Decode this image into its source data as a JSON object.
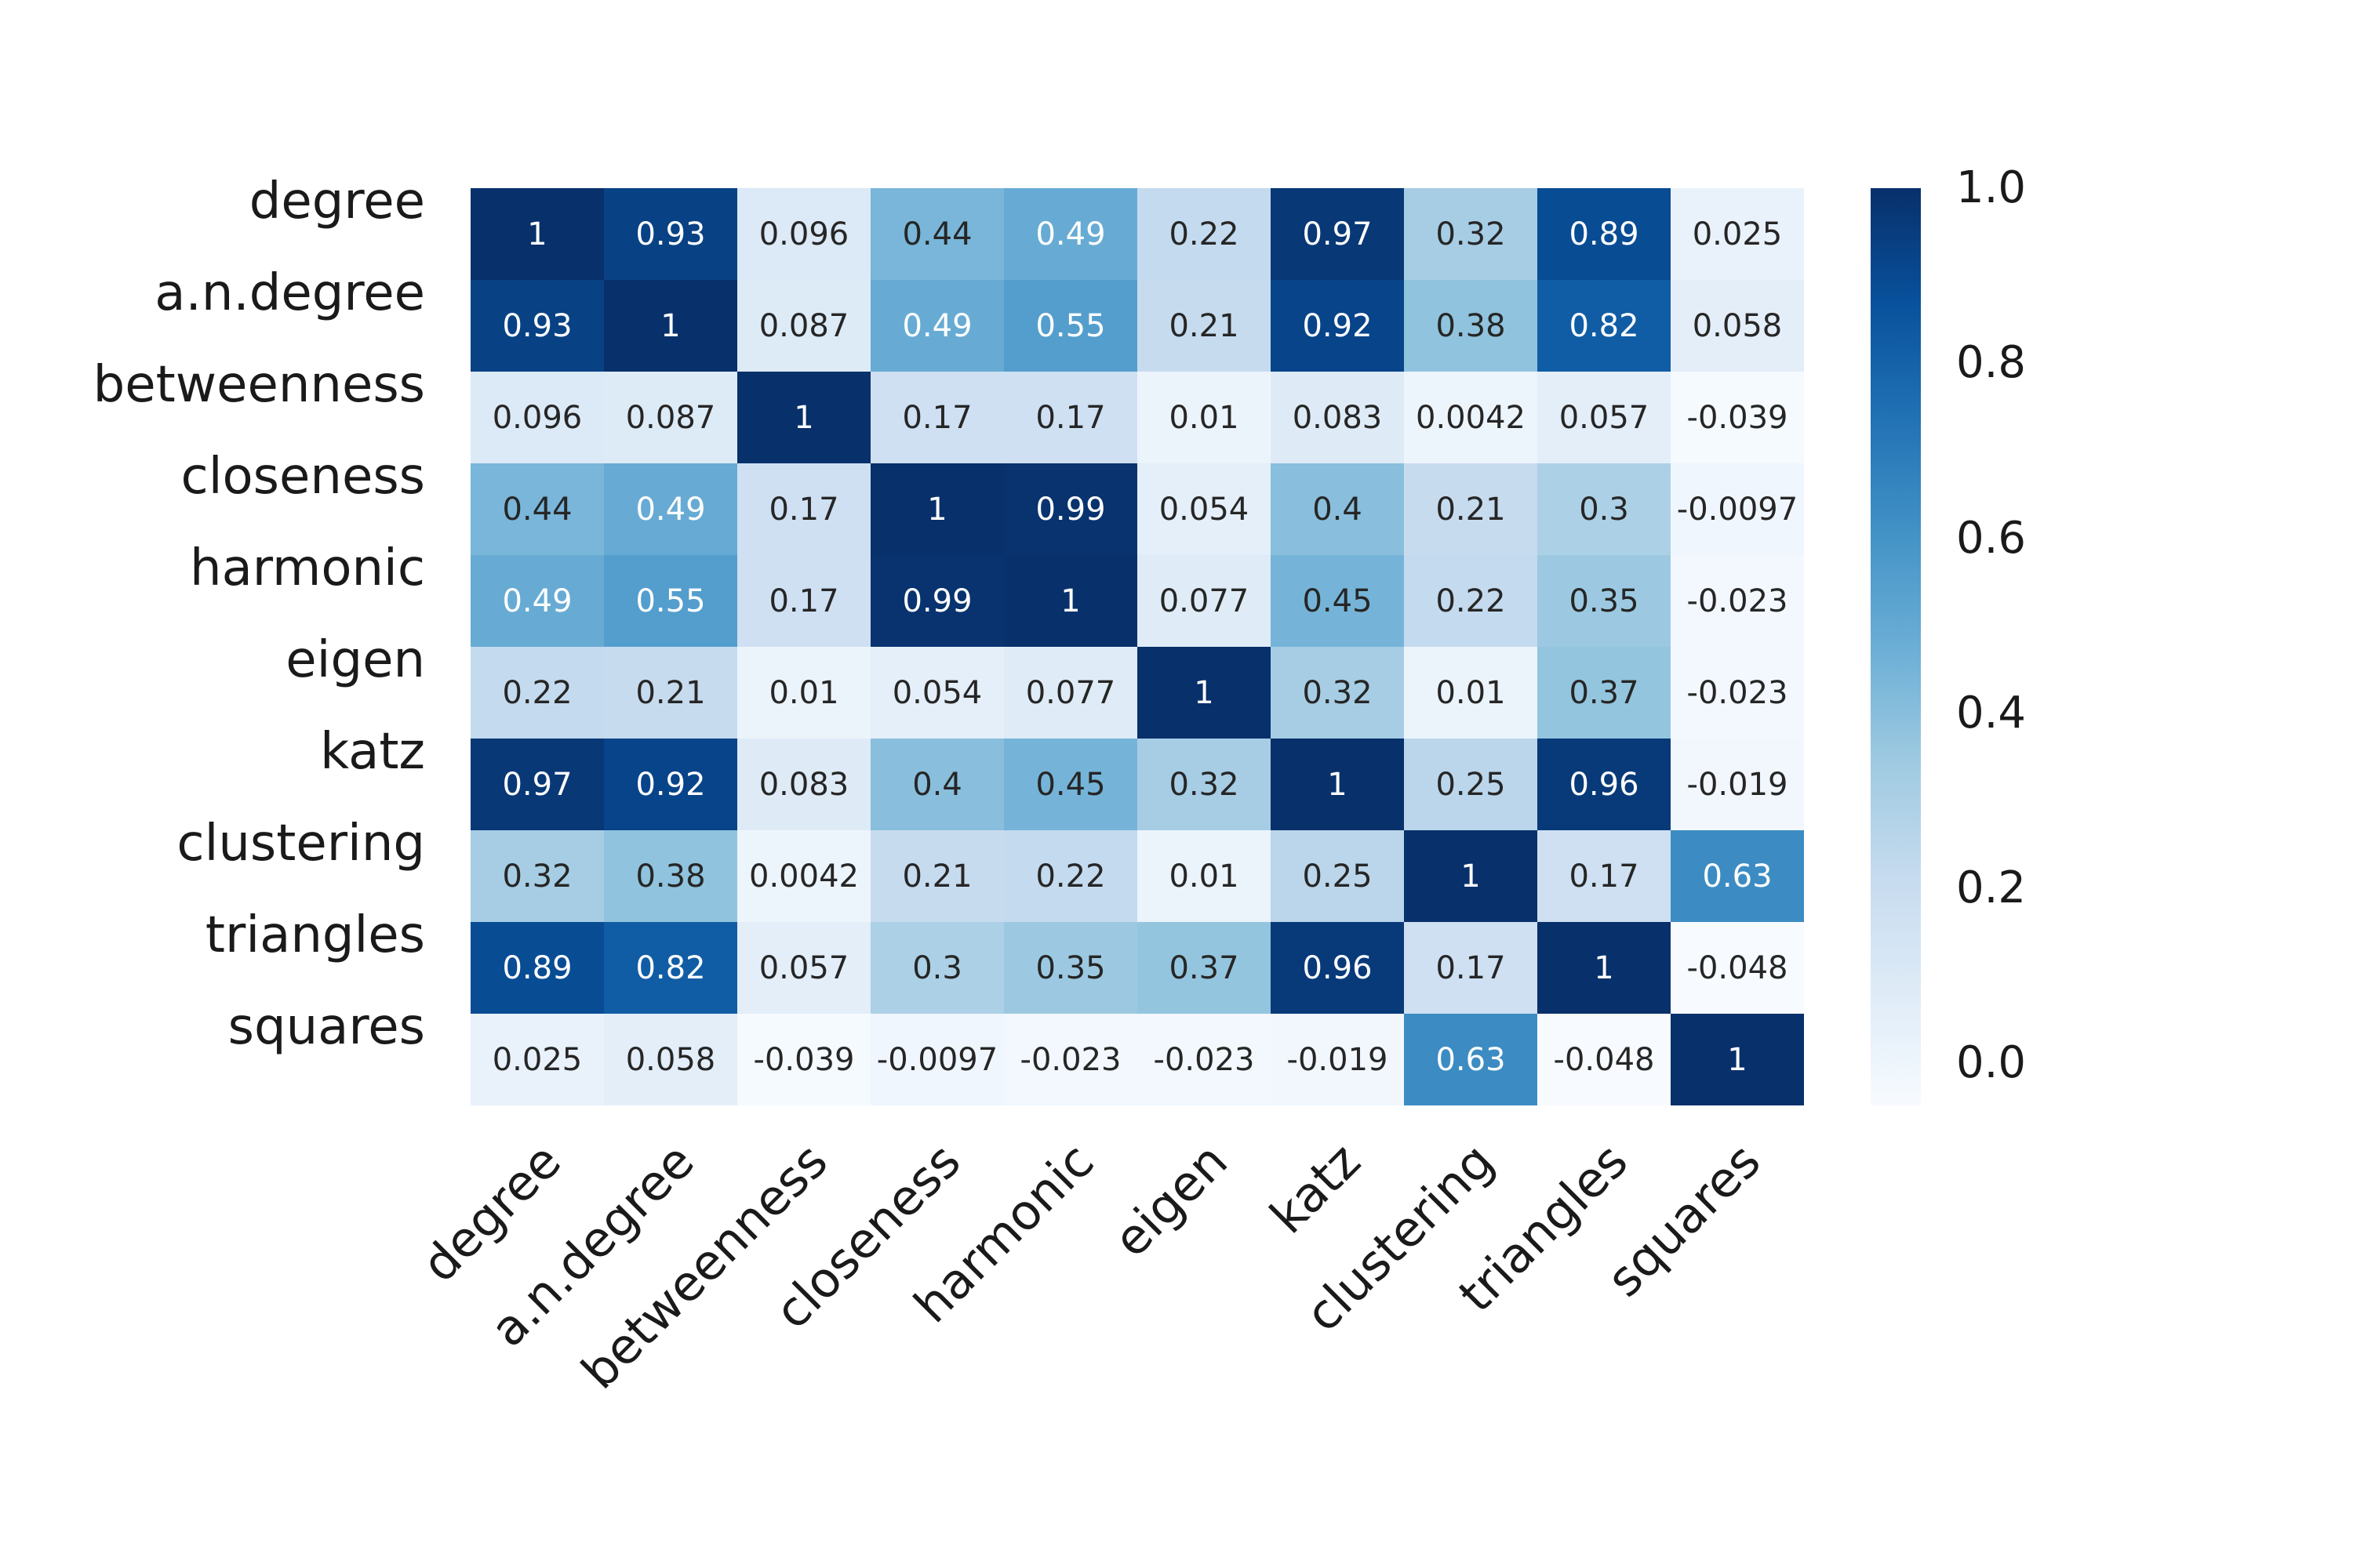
{
  "chart_data": {
    "type": "heatmap",
    "title": "",
    "categories": [
      "degree",
      "a.n.degree",
      "betweenness",
      "closeness",
      "harmonic",
      "eigen",
      "katz",
      "clustering",
      "triangles",
      "squares"
    ],
    "matrix": [
      [
        1,
        0.93,
        0.096,
        0.44,
        0.49,
        0.22,
        0.97,
        0.32,
        0.89,
        0.025
      ],
      [
        0.93,
        1,
        0.087,
        0.49,
        0.55,
        0.21,
        0.92,
        0.38,
        0.82,
        0.058
      ],
      [
        0.096,
        0.087,
        1,
        0.17,
        0.17,
        0.01,
        0.083,
        0.0042,
        0.057,
        -0.039
      ],
      [
        0.44,
        0.49,
        0.17,
        1,
        0.99,
        0.054,
        0.4,
        0.21,
        0.3,
        -0.0097
      ],
      [
        0.49,
        0.55,
        0.17,
        0.99,
        1,
        0.077,
        0.45,
        0.22,
        0.35,
        -0.023
      ],
      [
        0.22,
        0.21,
        0.01,
        0.054,
        0.077,
        1,
        0.32,
        0.01,
        0.37,
        -0.023
      ],
      [
        0.97,
        0.92,
        0.083,
        0.4,
        0.45,
        0.32,
        1,
        0.25,
        0.96,
        -0.019
      ],
      [
        0.32,
        0.38,
        0.0042,
        0.21,
        0.22,
        0.01,
        0.25,
        1,
        0.17,
        0.63
      ],
      [
        0.89,
        0.82,
        0.057,
        0.3,
        0.35,
        0.37,
        0.96,
        0.17,
        1,
        -0.048
      ],
      [
        0.025,
        0.058,
        -0.039,
        -0.0097,
        -0.023,
        -0.023,
        -0.019,
        0.63,
        -0.048,
        1
      ]
    ],
    "annotation_format": "2-significant-digits",
    "colormap": {
      "name": "Blues",
      "stops": [
        "#f7fbff",
        "#deebf7",
        "#c6dbef",
        "#9ecae1",
        "#6baed6",
        "#4292c6",
        "#2171b5",
        "#08519c",
        "#08306b"
      ],
      "vmin": -0.048,
      "vmax": 1.0
    },
    "colorbar": {
      "position": "right",
      "ticks": [
        {
          "label": "1.0",
          "value": 1.0
        },
        {
          "label": "0.8",
          "value": 0.8
        },
        {
          "label": "0.6",
          "value": 0.6
        },
        {
          "label": "0.4",
          "value": 0.4
        },
        {
          "label": "0.2",
          "value": 0.2
        },
        {
          "label": "0.0",
          "value": 0.0
        }
      ]
    },
    "annotation_colors": {
      "on_dark": "#ffffff",
      "on_light": "#262626"
    },
    "axis_text_color": "#1a1a1a",
    "grid": false,
    "x_tick_rotation_deg": 45
  }
}
